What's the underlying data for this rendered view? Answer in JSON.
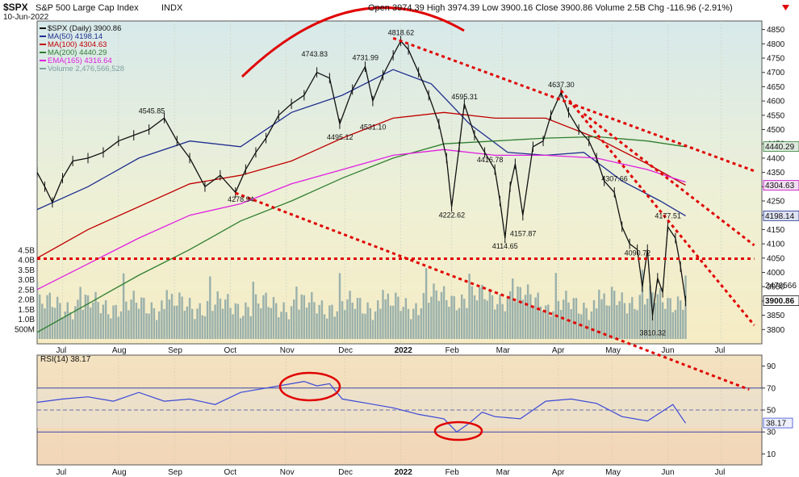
{
  "header": {
    "symbol": "$SPX",
    "name": "S&P 500 Large Cap Index",
    "exchange": "INDX",
    "date": "10-Jun-2022",
    "ohlc": "Open 3974.39  High 3974.39  Low 3900.16  Close 3900.86  Volume 2.5B  Chg -116.96 (-2.91%)",
    "chg_icon": "down-triangle-icon"
  },
  "legend": [
    {
      "label": "$SPX (Daily) 3900.86",
      "color": "#111111"
    },
    {
      "label": "MA(50) 4198.14",
      "color": "#1f2f8f"
    },
    {
      "label": "MA(100) 4304.63",
      "color": "#c00000"
    },
    {
      "label": "MA(200) 4440.29",
      "color": "#2f7f2f"
    },
    {
      "label": "EMA(165) 4316.64",
      "color": "#e020e0"
    },
    {
      "label": "Volume 2,476,566,528",
      "color": "#7fa0a0"
    }
  ],
  "price_badges": [
    "4440.29",
    "4304.63",
    "4198.14",
    "2476566",
    "3900.86"
  ],
  "rsi_label": "RSI(14) 38.17",
  "rsi_badge": "38.17",
  "rsi_line_color": "#3a49d8",
  "colors": {
    "upper_bg": "#eef3d8",
    "volume": "#8aa6a6",
    "trend": "#e00000"
  },
  "chart_data": {
    "type": "line",
    "x_tick_labels": [
      "Jul",
      "Aug",
      "Sep",
      "Oct",
      "Nov",
      "Dec",
      "2022",
      "Feb",
      "Mar",
      "Apr",
      "May",
      "Jun",
      "Jul"
    ],
    "price_ticks": [
      "4850",
      "4800",
      "4750",
      "4700",
      "4650",
      "4600",
      "4550",
      "4500",
      "4450",
      "4400",
      "4350",
      "4300",
      "4250",
      "4200",
      "4150",
      "4100",
      "4050",
      "4000",
      "3950",
      "3900",
      "3850",
      "3800"
    ],
    "volume_ticks": [
      "4.5B",
      "4.0B",
      "3.5B",
      "3.0B",
      "2.5B",
      "2.0B",
      "1.5B",
      "1.0B",
      "500M"
    ],
    "rsi_ticks": [
      "90",
      "70",
      "50",
      "30",
      "10"
    ],
    "price_ylim": [
      3750,
      4880
    ],
    "volume_ylim": [
      0,
      4.5
    ],
    "rsi_ylim": [
      0,
      100
    ],
    "annotations": [
      {
        "label": "4545.85",
        "x": 45,
        "y": 4545.85
      },
      {
        "label": "4278.94",
        "x": 80,
        "y": 4278.94
      },
      {
        "label": "4743.83",
        "x": 109,
        "y": 4743.83
      },
      {
        "label": "4495.12",
        "x": 119,
        "y": 4495.12
      },
      {
        "label": "4731.99",
        "x": 129,
        "y": 4731.99
      },
      {
        "label": "4531.10",
        "x": 132,
        "y": 4531.1
      },
      {
        "label": "4818.62",
        "x": 143,
        "y": 4818.62
      },
      {
        "label": "4222.62",
        "x": 163,
        "y": 4222.62
      },
      {
        "label": "4595.31",
        "x": 168,
        "y": 4595.31
      },
      {
        "label": "4416.78",
        "x": 178,
        "y": 4416.78
      },
      {
        "label": "4114.65",
        "x": 184,
        "y": 4114.65
      },
      {
        "label": "4157.87",
        "x": 191,
        "y": 4157.87
      },
      {
        "label": "4637.30",
        "x": 206,
        "y": 4637.3
      },
      {
        "label": "4307.66",
        "x": 227,
        "y": 4307.66
      },
      {
        "label": "4090.72",
        "x": 236,
        "y": 4090.72
      },
      {
        "label": "3810.32",
        "x": 242,
        "y": 3810.32
      },
      {
        "label": "4177.51",
        "x": 248,
        "y": 4177.51
      }
    ],
    "series": [
      {
        "name": "$SPX",
        "color": "#111111",
        "x": [
          0,
          3,
          6,
          10,
          14,
          20,
          26,
          32,
          38,
          44,
          50,
          55,
          60,
          66,
          72,
          78,
          82,
          86,
          90,
          95,
          100,
          105,
          110,
          115,
          119,
          124,
          129,
          132,
          136,
          140,
          143,
          146,
          150,
          154,
          158,
          161,
          163,
          166,
          168,
          172,
          176,
          180,
          182,
          184,
          186,
          188,
          191,
          195,
          199,
          202,
          206,
          209,
          213,
          217,
          220,
          223,
          227,
          230,
          233,
          236,
          238,
          240,
          242,
          244,
          246,
          248,
          251,
          253,
          255
        ],
        "y": [
          4350,
          4300,
          4245,
          4330,
          4390,
          4400,
          4420,
          4460,
          4480,
          4500,
          4540,
          4460,
          4400,
          4300,
          4340,
          4280,
          4360,
          4420,
          4470,
          4550,
          4590,
          4620,
          4700,
          4680,
          4520,
          4640,
          4720,
          4600,
          4690,
          4760,
          4810,
          4780,
          4700,
          4620,
          4520,
          4400,
          4230,
          4440,
          4590,
          4480,
          4420,
          4360,
          4250,
          4120,
          4300,
          4380,
          4200,
          4440,
          4460,
          4550,
          4630,
          4560,
          4500,
          4460,
          4400,
          4320,
          4280,
          4160,
          4100,
          4080,
          3950,
          4080,
          3850,
          3980,
          3930,
          4160,
          4120,
          4020,
          3900
        ]
      },
      {
        "name": "MA(50)",
        "color": "#1f2f8f",
        "x": [
          0,
          20,
          40,
          60,
          80,
          100,
          120,
          140,
          155,
          170,
          185,
          200,
          215,
          230,
          245,
          255
        ],
        "y": [
          4220,
          4300,
          4400,
          4460,
          4440,
          4560,
          4620,
          4710,
          4660,
          4520,
          4420,
          4410,
          4420,
          4320,
          4250,
          4198
        ]
      },
      {
        "name": "MA(100)",
        "color": "#c00000",
        "x": [
          0,
          20,
          40,
          60,
          80,
          100,
          120,
          140,
          160,
          180,
          200,
          220,
          240,
          255
        ],
        "y": [
          4050,
          4150,
          4230,
          4310,
          4340,
          4390,
          4470,
          4540,
          4560,
          4540,
          4540,
          4470,
          4380,
          4305
        ]
      },
      {
        "name": "MA(200)",
        "color": "#2f7f2f",
        "x": [
          0,
          20,
          40,
          60,
          80,
          100,
          120,
          140,
          160,
          180,
          200,
          220,
          240,
          255
        ],
        "y": [
          3790,
          3890,
          3990,
          4080,
          4180,
          4250,
          4330,
          4400,
          4450,
          4460,
          4470,
          4475,
          4460,
          4440
        ]
      },
      {
        "name": "EMA(165)",
        "color": "#e020e0",
        "x": [
          0,
          20,
          40,
          60,
          80,
          100,
          120,
          140,
          160,
          180,
          200,
          220,
          240,
          255
        ],
        "y": [
          3940,
          4030,
          4120,
          4200,
          4240,
          4310,
          4360,
          4410,
          4430,
          4410,
          4410,
          4400,
          4360,
          4316
        ]
      },
      {
        "name": "RSI(14)",
        "color": "#3a49d8",
        "x": [
          0,
          10,
          20,
          30,
          40,
          50,
          60,
          70,
          80,
          90,
          100,
          105,
          110,
          115,
          120,
          130,
          140,
          150,
          160,
          165,
          170,
          175,
          180,
          190,
          200,
          210,
          220,
          230,
          240,
          250,
          255
        ],
        "y": [
          57,
          60,
          62,
          58,
          66,
          58,
          60,
          55,
          66,
          70,
          74,
          76,
          72,
          74,
          60,
          56,
          52,
          46,
          42,
          30,
          38,
          48,
          44,
          42,
          58,
          60,
          56,
          44,
          40,
          55,
          38
        ]
      }
    ],
    "trend_lines": [
      {
        "x": [
          78,
          280
        ],
        "y": [
          4278,
          3590
        ]
      },
      {
        "x": [
          140,
          282
        ],
        "y": [
          4820,
          4355
        ]
      },
      {
        "x": [
          0,
          282
        ],
        "y": [
          4048,
          4048
        ]
      },
      {
        "x": [
          206,
          282
        ],
        "y": [
          4637,
          3815
        ]
      },
      {
        "x": [
          215,
          282
        ],
        "y": [
          4555,
          4095
        ]
      }
    ]
  }
}
